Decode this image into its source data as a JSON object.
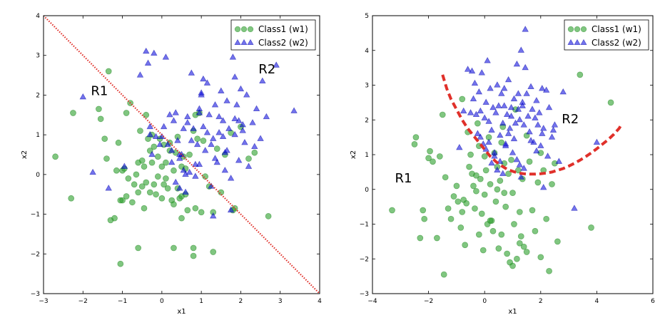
{
  "chart_data": [
    {
      "type": "scatter",
      "xlabel": "x1",
      "ylabel": "x2",
      "xlim": [
        -3,
        4
      ],
      "ylim": [
        -3,
        4
      ],
      "xticks": [
        -3,
        -2,
        -1,
        0,
        1,
        2,
        3,
        4
      ],
      "yticks": [
        -3,
        -2,
        -1,
        0,
        1,
        2,
        3,
        4
      ],
      "grid": false,
      "legend_position": "top-right",
      "region_labels": [
        {
          "text": "R1",
          "x": -1.8,
          "y": 2.0
        },
        {
          "text": "R2",
          "x": 2.45,
          "y": 2.55
        }
      ],
      "boundary": {
        "style": "dotted",
        "color": "#e0302a",
        "x": [
          -3,
          4
        ],
        "y": [
          4,
          -3
        ]
      },
      "series": [
        {
          "name": "Class1 (w1)",
          "marker": "circle",
          "color": "#2ca02c",
          "x": [
            -2.7,
            -2.3,
            -2.25,
            -1.6,
            -1.55,
            -1.45,
            -1.4,
            -1.35,
            -1.3,
            -1.2,
            -1.15,
            -1.1,
            -1.05,
            -1.0,
            -1.0,
            -0.95,
            -0.9,
            -0.9,
            -0.85,
            -0.8,
            -0.75,
            -0.7,
            -0.65,
            -0.6,
            -0.6,
            -0.55,
            -0.5,
            -0.5,
            -0.45,
            -0.45,
            -0.4,
            -0.4,
            -0.35,
            -0.3,
            -0.3,
            -0.25,
            -0.25,
            -0.2,
            -0.2,
            -0.15,
            -0.1,
            -0.1,
            -0.05,
            0.0,
            0.0,
            0.05,
            0.05,
            0.1,
            0.1,
            0.15,
            0.2,
            0.2,
            0.25,
            0.3,
            0.3,
            0.35,
            0.4,
            0.4,
            0.45,
            0.5,
            0.5,
            0.55,
            0.6,
            0.6,
            0.65,
            0.7,
            0.8,
            0.85,
            0.85,
            0.9,
            0.95,
            1.0,
            1.05,
            1.1,
            1.2,
            1.3,
            1.4,
            1.5,
            1.6,
            1.75,
            1.8,
            1.85,
            2.0,
            2.2,
            2.35,
            2.7,
            -0.6,
            0.8,
            -1.05,
            0.3,
            1.3,
            0.8,
            0.5
          ],
          "y": [
            0.45,
            -0.6,
            1.55,
            1.65,
            1.4,
            0.9,
            0.4,
            2.6,
            -1.15,
            -1.1,
            0.1,
            0.8,
            -0.65,
            -0.65,
            0.1,
            0.15,
            -0.55,
            1.55,
            -0.1,
            1.8,
            -0.7,
            -0.25,
            0.0,
            -0.45,
            0.3,
            1.1,
            -0.3,
            0.35,
            0.2,
            -0.85,
            1.5,
            -0.2,
            0.9,
            0.6,
            -0.45,
            1.0,
            0.3,
            0.7,
            -0.25,
            -0.5,
            -0.05,
            0.45,
            0.9,
            0.2,
            -0.6,
            0.75,
            -0.25,
            0.3,
            -0.1,
            -0.35,
            0.8,
            0.6,
            -0.65,
            0.1,
            -0.75,
            0.55,
            -0.35,
            0.95,
            -0.6,
            0.2,
            -0.55,
            0.45,
            0.15,
            -0.5,
            -0.9,
            0.5,
            1.1,
            -0.85,
            1.5,
            0.9,
            1.55,
            -0.95,
            0.85,
            -0.05,
            -0.3,
            -0.95,
            0.65,
            -0.45,
            0.5,
            1.05,
            -0.9,
            -0.85,
            1.2,
            0.4,
            0.55,
            -1.05,
            -1.85,
            -1.85,
            -2.25,
            -1.85,
            -1.95,
            -2.05,
            -1.1
          ]
        },
        {
          "name": "Class2 (w2)",
          "marker": "triangle",
          "color": "#0000dd",
          "x": [
            -2.0,
            -1.75,
            -1.35,
            -0.95,
            -0.55,
            -0.4,
            -0.35,
            -0.3,
            -0.25,
            -0.2,
            0.0,
            0.1,
            0.2,
            0.25,
            0.3,
            0.35,
            0.4,
            0.45,
            0.5,
            0.55,
            0.6,
            0.65,
            0.7,
            0.75,
            0.8,
            0.85,
            0.9,
            0.95,
            1.0,
            1.05,
            1.1,
            1.15,
            1.2,
            1.25,
            1.3,
            1.35,
            1.4,
            1.45,
            1.5,
            1.55,
            1.6,
            1.65,
            1.7,
            1.75,
            1.8,
            1.85,
            1.9,
            1.95,
            2.0,
            2.05,
            2.1,
            2.2,
            2.3,
            2.4,
            2.5,
            2.55,
            2.65,
            2.9,
            3.35,
            -0.15,
            0.45,
            0.65,
            0.85,
            1.0,
            1.25,
            1.45,
            1.65,
            1.85,
            2.05,
            0.05,
            0.25,
            0.55,
            0.75,
            0.95,
            1.15,
            1.35,
            1.55,
            1.75,
            1.95,
            2.15,
            2.35,
            -0.3,
            0.15,
            0.35,
            0.6,
            1.05,
            1.6,
            1.85,
            0.95,
            0.45,
            -0.05,
            1.3
          ],
          "y": [
            1.95,
            0.05,
            -0.35,
            0.2,
            2.5,
            3.1,
            2.8,
            1.0,
            0.5,
            3.05,
            0.95,
            2.95,
            1.5,
            0.3,
            1.35,
            -0.2,
            0.85,
            -0.35,
            0.5,
            1.15,
            -0.45,
            1.45,
            0.05,
            2.55,
            1.15,
            -0.05,
            0.75,
            1.55,
            2.0,
            1.2,
            0.6,
            2.3,
            1.5,
            -0.3,
            0.9,
            1.75,
            0.3,
            1.05,
            2.1,
            1.35,
            0.55,
            1.85,
            1.15,
            -0.1,
            2.95,
            1.4,
            1.75,
            0.35,
            2.15,
            1.1,
            0.8,
            0.2,
            1.3,
            1.65,
            0.9,
            2.35,
            1.45,
            2.75,
            1.6,
            0.95,
            0.5,
            1.3,
            0.25,
            2.05,
            0.75,
            1.45,
            0.6,
            2.45,
            1.25,
            1.2,
            0.6,
            0.1,
            0.85,
            1.65,
            1.05,
            0.4,
            0.95,
            -0.9,
            1.35,
            2.0,
            0.7,
            1.2,
            0.75,
            1.55,
            0.0,
            2.4,
            0.1,
            1.0,
            0.25,
            0.4,
            0.75,
            -1.05
          ]
        }
      ]
    },
    {
      "type": "scatter",
      "xlabel": "x1",
      "ylabel": "x2",
      "xlim": [
        -4,
        6
      ],
      "ylim": [
        -3,
        5
      ],
      "xticks": [
        -4,
        -2,
        0,
        2,
        4,
        6
      ],
      "yticks": [
        -3,
        -2,
        -1,
        0,
        1,
        2,
        3,
        4,
        5
      ],
      "grid": false,
      "legend_position": "top-right",
      "region_labels": [
        {
          "text": "R1",
          "x": -3.2,
          "y": 0.2
        },
        {
          "text": "R2",
          "x": 2.75,
          "y": 1.9
        }
      ],
      "boundary": {
        "style": "dashed",
        "color": "#e0302a",
        "x": [
          -1.5,
          -1.35,
          -1.2,
          -1.0,
          -0.8,
          -0.6,
          -0.4,
          -0.2,
          0.0,
          0.2,
          0.4,
          0.6,
          0.8,
          1.0,
          1.2,
          1.4,
          1.6,
          1.8,
          2.0,
          2.2,
          2.4,
          2.6,
          2.8,
          3.0,
          3.2,
          3.4,
          3.6,
          3.8,
          4.0,
          4.2,
          4.4,
          4.6,
          4.8,
          4.9
        ],
        "y": [
          3.3,
          2.9,
          2.6,
          2.3,
          2.0,
          1.75,
          1.55,
          1.35,
          1.15,
          0.95,
          0.8,
          0.68,
          0.58,
          0.52,
          0.47,
          0.45,
          0.44,
          0.44,
          0.45,
          0.47,
          0.5,
          0.55,
          0.6,
          0.67,
          0.75,
          0.84,
          0.94,
          1.05,
          1.17,
          1.3,
          1.43,
          1.58,
          1.76,
          1.9
        ]
      },
      "series": [
        {
          "name": "Class1 (w1)",
          "marker": "circle",
          "color": "#2ca02c",
          "x": [
            -3.3,
            -2.5,
            -2.45,
            -2.3,
            -2.2,
            -2.15,
            -2.0,
            -1.95,
            -1.85,
            -1.7,
            -1.6,
            -1.5,
            -1.45,
            -1.4,
            -1.3,
            -1.2,
            -1.1,
            -1.0,
            -0.95,
            -0.85,
            -0.8,
            -0.75,
            -0.7,
            -0.65,
            -0.6,
            -0.55,
            -0.5,
            -0.45,
            -0.4,
            -0.35,
            -0.3,
            -0.25,
            -0.2,
            -0.15,
            -0.1,
            -0.05,
            0.0,
            0.0,
            0.05,
            0.1,
            0.15,
            0.2,
            0.25,
            0.3,
            0.35,
            0.4,
            0.45,
            0.5,
            0.55,
            0.6,
            0.65,
            0.7,
            0.75,
            0.8,
            0.85,
            0.9,
            0.95,
            1.0,
            1.05,
            1.1,
            1.15,
            1.2,
            1.25,
            1.3,
            1.35,
            1.4,
            1.5,
            1.6,
            1.7,
            1.8,
            1.9,
            2.0,
            2.1,
            2.2,
            2.3,
            2.4,
            2.5,
            2.6,
            3.4,
            3.8,
            4.5,
            -0.3,
            0.2,
            0.6,
            1.0,
            1.5,
            2.0,
            -0.8,
            0.45,
            1.25,
            -0.2,
            0.7
          ],
          "y": [
            -0.6,
            1.3,
            1.5,
            -1.4,
            -0.6,
            -0.85,
            0.9,
            1.1,
            0.8,
            -1.4,
            0.95,
            2.15,
            -2.45,
            0.35,
            -0.55,
            -0.85,
            -0.2,
            0.1,
            -0.35,
            -1.1,
            -0.65,
            -0.3,
            -1.6,
            -0.4,
            1.65,
            0.65,
            1.0,
            0.45,
            0.1,
            -0.55,
            -0.05,
            1.9,
            -1.3,
            0.3,
            -0.7,
            -1.75,
            0.95,
            -0.15,
            0.55,
            -1.0,
            1.5,
            0.15,
            -0.9,
            -1.2,
            1.05,
            -0.35,
            0.65,
            -1.7,
            0.25,
            -1.3,
            1.8,
            0.75,
            -0.5,
            -1.85,
            0.45,
            -2.1,
            0.85,
            -0.1,
            -1.0,
            2.3,
            -2.0,
            0.55,
            -0.65,
            -1.35,
            0.3,
            -1.65,
            1.55,
            0.8,
            -0.6,
            -1.2,
            0.2,
            -1.95,
            0.55,
            -0.85,
            -2.35,
            0.15,
            0.75,
            -1.5,
            3.3,
            -1.1,
            2.5,
            0.4,
            -0.9,
            1.35,
            -2.2,
            -1.8,
            1.05,
            2.6,
            0.0,
            -1.55,
            1.25,
            -0.1
          ]
        },
        {
          "name": "Class2 (w2)",
          "marker": "triangle",
          "color": "#0000dd",
          "x": [
            -0.9,
            -0.75,
            -0.6,
            -0.5,
            -0.4,
            -0.35,
            -0.3,
            -0.25,
            -0.2,
            -0.15,
            -0.1,
            -0.05,
            0.0,
            0.05,
            0.1,
            0.15,
            0.2,
            0.25,
            0.3,
            0.35,
            0.4,
            0.45,
            0.5,
            0.55,
            0.6,
            0.65,
            0.7,
            0.75,
            0.8,
            0.85,
            0.9,
            0.95,
            1.0,
            1.05,
            1.1,
            1.15,
            1.2,
            1.25,
            1.3,
            1.35,
            1.4,
            1.45,
            1.5,
            1.55,
            1.6,
            1.65,
            1.7,
            1.75,
            1.8,
            1.85,
            1.9,
            1.95,
            2.0,
            2.05,
            2.1,
            2.2,
            2.3,
            2.4,
            2.5,
            2.65,
            2.8,
            3.2,
            4.0,
            0.15,
            0.35,
            0.55,
            0.75,
            0.95,
            1.15,
            1.35,
            0.25,
            0.45,
            0.65,
            0.85,
            1.05,
            1.25,
            1.45,
            1.65,
            1.85,
            2.05,
            2.25,
            2.45,
            -0.45,
            -0.15,
            0.05,
            1.3,
            1.4,
            2.1,
            0.7,
            1.2
          ],
          "y": [
            1.2,
            2.25,
            3.45,
            2.2,
            2.6,
            3.05,
            2.15,
            1.6,
            2.8,
            2.25,
            3.35,
            1.3,
            2.05,
            2.5,
            3.7,
            1.95,
            2.9,
            1.7,
            2.35,
            0.95,
            2.2,
            3.0,
            2.4,
            1.55,
            2.75,
            1.9,
            2.4,
            1.3,
            2.15,
            3.15,
            1.75,
            2.35,
            1.05,
            2.6,
            1.9,
            3.6,
            2.3,
            2.0,
            4.0,
            2.5,
            1.85,
            3.5,
            2.75,
            2.1,
            1.65,
            2.95,
            2.3,
            1.35,
            2.05,
            2.55,
            1.85,
            2.2,
            1.25,
            2.9,
            1.75,
            2.85,
            2.35,
            1.5,
            1.85,
            0.8,
            2.8,
            -0.55,
            1.35,
            1.35,
            1.05,
            0.8,
            1.25,
            2.1,
            0.85,
            2.4,
            0.75,
            0.55,
            0.45,
            1.6,
            1.45,
            0.7,
            4.6,
            1.4,
            1.1,
            1.6,
            0.95,
            1.7,
            3.4,
            1.5,
            1.15,
            0.35,
            0.6,
            0.05,
            2.9,
            2.75
          ]
        }
      ]
    }
  ]
}
